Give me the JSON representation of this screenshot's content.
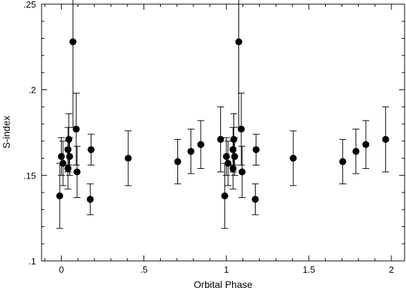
{
  "chart_data": {
    "type": "scatter",
    "title": "",
    "xlabel": "Orbital Phase",
    "ylabel": "S-index",
    "xlim": [
      -0.12,
      2.08
    ],
    "ylim": [
      0.1,
      0.25
    ],
    "grid": false,
    "legend": "none",
    "x_ticks": [
      {
        "value": 0,
        "label": "0"
      },
      {
        "value": 0.5,
        "label": ".5"
      },
      {
        "value": 1,
        "label": "1"
      },
      {
        "value": 1.5,
        "label": "1.5"
      },
      {
        "value": 2,
        "label": "2"
      }
    ],
    "y_ticks": [
      {
        "value": 0.1,
        "label": ".1"
      },
      {
        "value": 0.15,
        "label": ".15"
      },
      {
        "value": 0.2,
        "label": ".2"
      },
      {
        "value": 0.25,
        "label": ".25"
      }
    ],
    "marker_color": "#000000",
    "series": [
      {
        "points": [
          {
            "x": -0.01,
            "y": 0.138,
            "err": 0.019
          },
          {
            "x": 0.0,
            "y": 0.161,
            "err": 0.011
          },
          {
            "x": 0.01,
            "y": 0.157,
            "err": 0.013
          },
          {
            "x": 0.04,
            "y": 0.154,
            "err": 0.012
          },
          {
            "x": 0.04,
            "y": 0.165,
            "err": 0.013
          },
          {
            "x": 0.045,
            "y": 0.171,
            "err": 0.015
          },
          {
            "x": 0.05,
            "y": 0.161,
            "err": 0.011
          },
          {
            "x": 0.07,
            "y": 0.228,
            "err": 0.05
          },
          {
            "x": 0.09,
            "y": 0.177,
            "err": 0.021
          },
          {
            "x": 0.095,
            "y": 0.152,
            "err": 0.015
          },
          {
            "x": 0.175,
            "y": 0.136,
            "err": 0.009
          },
          {
            "x": 0.18,
            "y": 0.165,
            "err": 0.009
          },
          {
            "x": 0.405,
            "y": 0.16,
            "err": 0.016
          },
          {
            "x": 0.705,
            "y": 0.158,
            "err": 0.013
          },
          {
            "x": 0.785,
            "y": 0.164,
            "err": 0.013
          },
          {
            "x": 0.845,
            "y": 0.168,
            "err": 0.014
          },
          {
            "x": 0.965,
            "y": 0.171,
            "err": 0.019
          },
          {
            "x": 0.99,
            "y": 0.138,
            "err": 0.019
          },
          {
            "x": 1.0,
            "y": 0.161,
            "err": 0.011
          },
          {
            "x": 1.01,
            "y": 0.157,
            "err": 0.013
          },
          {
            "x": 1.04,
            "y": 0.154,
            "err": 0.012
          },
          {
            "x": 1.04,
            "y": 0.165,
            "err": 0.013
          },
          {
            "x": 1.045,
            "y": 0.171,
            "err": 0.015
          },
          {
            "x": 1.05,
            "y": 0.161,
            "err": 0.011
          },
          {
            "x": 1.075,
            "y": 0.228,
            "err": 0.05
          },
          {
            "x": 1.09,
            "y": 0.177,
            "err": 0.021
          },
          {
            "x": 1.095,
            "y": 0.152,
            "err": 0.015
          },
          {
            "x": 1.175,
            "y": 0.136,
            "err": 0.009
          },
          {
            "x": 1.18,
            "y": 0.165,
            "err": 0.009
          },
          {
            "x": 1.405,
            "y": 0.16,
            "err": 0.016
          },
          {
            "x": 1.705,
            "y": 0.158,
            "err": 0.013
          },
          {
            "x": 1.785,
            "y": 0.164,
            "err": 0.013
          },
          {
            "x": 1.845,
            "y": 0.168,
            "err": 0.014
          },
          {
            "x": 1.965,
            "y": 0.171,
            "err": 0.019
          }
        ]
      }
    ]
  }
}
